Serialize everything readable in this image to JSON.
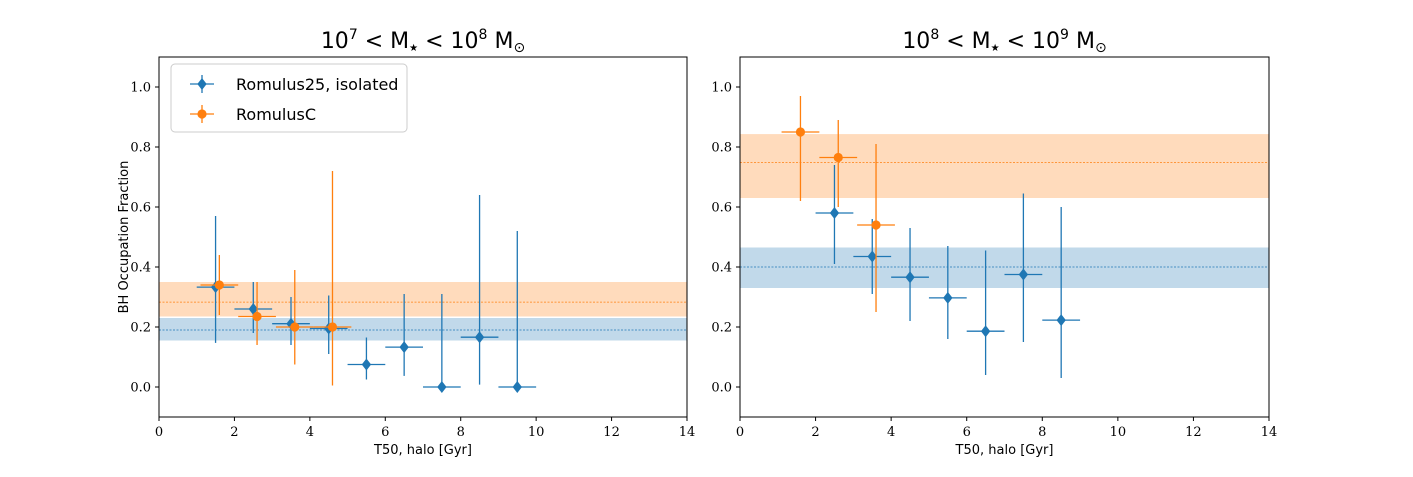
{
  "colors": {
    "isolated": "#1f77b4",
    "clustered": "#ff7f0e"
  },
  "chart_data": [
    {
      "type": "scatter",
      "title": {
        "base1": "10",
        "exp1": "7",
        "rel1": " < M",
        "star": "★",
        "rel2": " < 10",
        "exp2": "8",
        "unit": " M",
        "sun": "⊙"
      },
      "xlabel": "T50, halo [Gyr]",
      "ylabel": "BH Occupation Fraction",
      "xlim": [
        0,
        14
      ],
      "ylim": [
        -0.1,
        1.1
      ],
      "xticks": [
        0,
        2,
        4,
        6,
        8,
        10,
        12,
        14
      ],
      "yticks": [
        0.0,
        0.2,
        0.4,
        0.6,
        0.8,
        1.0
      ],
      "legend": {
        "position": "upper-left",
        "entries": [
          "Romulus25, isolated",
          "RomulusC"
        ]
      },
      "bands": [
        {
          "series": "isolated",
          "center": 0.19,
          "low": 0.155,
          "high": 0.23
        },
        {
          "series": "clustered",
          "center": 0.283,
          "low": 0.235,
          "high": 0.35
        }
      ],
      "series": [
        {
          "name": "Romulus25, isolated",
          "key": "isolated",
          "marker": "diamond",
          "points": [
            {
              "x": 1.5,
              "y": 0.333,
              "ylo": 0.147,
              "yhi": 0.57
            },
            {
              "x": 2.5,
              "y": 0.26,
              "ylo": 0.18,
              "yhi": 0.35
            },
            {
              "x": 3.5,
              "y": 0.211,
              "ylo": 0.14,
              "yhi": 0.3
            },
            {
              "x": 4.5,
              "y": 0.195,
              "ylo": 0.11,
              "yhi": 0.305
            },
            {
              "x": 5.5,
              "y": 0.075,
              "ylo": 0.025,
              "yhi": 0.165
            },
            {
              "x": 6.5,
              "y": 0.133,
              "ylo": 0.037,
              "yhi": 0.31
            },
            {
              "x": 7.5,
              "y": 0.0,
              "ylo": 0.0,
              "yhi": 0.31
            },
            {
              "x": 8.5,
              "y": 0.166,
              "ylo": 0.008,
              "yhi": 0.64
            },
            {
              "x": 9.5,
              "y": 0.0,
              "ylo": 0.0,
              "yhi": 0.52
            }
          ]
        },
        {
          "name": "RomulusC",
          "key": "clustered",
          "marker": "circle",
          "points": [
            {
              "x": 1.6,
              "y": 0.34,
              "ylo": 0.24,
              "yhi": 0.44
            },
            {
              "x": 2.6,
              "y": 0.235,
              "ylo": 0.14,
              "yhi": 0.35
            },
            {
              "x": 3.6,
              "y": 0.2,
              "ylo": 0.075,
              "yhi": 0.39
            },
            {
              "x": 4.6,
              "y": 0.2,
              "ylo": 0.005,
              "yhi": 0.72
            }
          ]
        }
      ]
    },
    {
      "type": "scatter",
      "title": {
        "base1": "10",
        "exp1": "8",
        "rel1": " < M",
        "star": "★",
        "rel2": " < 10",
        "exp2": "9",
        "unit": " M",
        "sun": "⊙"
      },
      "xlabel": "T50, halo [Gyr]",
      "ylabel": "",
      "xlim": [
        0,
        14
      ],
      "ylim": [
        -0.1,
        1.1
      ],
      "xticks": [
        0,
        2,
        4,
        6,
        8,
        10,
        12,
        14
      ],
      "yticks": [
        0.0,
        0.2,
        0.4,
        0.6,
        0.8,
        1.0
      ],
      "bands": [
        {
          "series": "isolated",
          "center": 0.4,
          "low": 0.33,
          "high": 0.465
        },
        {
          "series": "clustered",
          "center": 0.748,
          "low": 0.63,
          "high": 0.843
        }
      ],
      "series": [
        {
          "name": "Romulus25, isolated",
          "key": "isolated",
          "marker": "diamond",
          "points": [
            {
              "x": 2.5,
              "y": 0.58,
              "ylo": 0.41,
              "yhi": 0.74
            },
            {
              "x": 3.5,
              "y": 0.435,
              "ylo": 0.31,
              "yhi": 0.56
            },
            {
              "x": 4.5,
              "y": 0.366,
              "ylo": 0.22,
              "yhi": 0.53
            },
            {
              "x": 5.5,
              "y": 0.297,
              "ylo": 0.16,
              "yhi": 0.47
            },
            {
              "x": 6.5,
              "y": 0.186,
              "ylo": 0.04,
              "yhi": 0.455
            },
            {
              "x": 7.5,
              "y": 0.375,
              "ylo": 0.15,
              "yhi": 0.645
            },
            {
              "x": 8.5,
              "y": 0.223,
              "ylo": 0.03,
              "yhi": 0.6
            }
          ]
        },
        {
          "name": "RomulusC",
          "key": "clustered",
          "marker": "circle",
          "points": [
            {
              "x": 1.6,
              "y": 0.85,
              "ylo": 0.62,
              "yhi": 0.97
            },
            {
              "x": 2.6,
              "y": 0.765,
              "ylo": 0.6,
              "yhi": 0.89
            },
            {
              "x": 3.6,
              "y": 0.54,
              "ylo": 0.25,
              "yhi": 0.81
            }
          ]
        }
      ]
    }
  ]
}
